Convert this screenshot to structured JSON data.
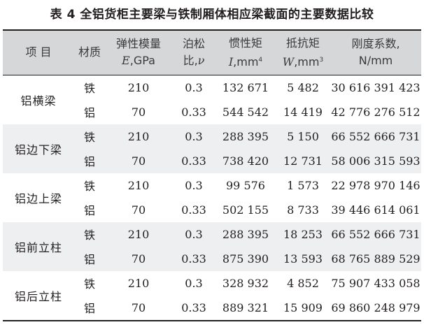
{
  "title": "表 4  全铝货柜主要梁与铁制厢体相应梁截面的主要数据比较",
  "headers": {
    "item": "项 目",
    "material": "材质",
    "modulus_l1": "弹性模量",
    "modulus_sym": "E",
    "modulus_unit": ",GPa",
    "poisson_l1": "泊松",
    "poisson_l2": "比,",
    "poisson_sym": "ν",
    "inertia_l1": "惯性矩",
    "inertia_sym": "I",
    "inertia_unit": ",mm",
    "inertia_exp": "4",
    "section_l1": "抵抗矩",
    "section_sym": "W",
    "section_unit": ",mm",
    "section_exp": "3",
    "stiffness_l1": "刚度系数,",
    "stiffness_l2": "N/mm"
  },
  "groups": [
    {
      "name": "铝横梁",
      "rows": [
        {
          "material": "铁",
          "modulus": "210",
          "poisson": "0.3",
          "inertia": "132 671",
          "section": "5 482",
          "stiffness": "30 616 391 423"
        },
        {
          "material": "铝",
          "modulus": "70",
          "poisson": "0.33",
          "inertia": "544 542",
          "section": "14 419",
          "stiffness": "42 776 276 512"
        }
      ]
    },
    {
      "name": "铝边下梁",
      "rows": [
        {
          "material": "铁",
          "modulus": "210",
          "poisson": "0.3",
          "inertia": "288 395",
          "section": "5 150",
          "stiffness": "66 552 666 731"
        },
        {
          "material": "铝",
          "modulus": "70",
          "poisson": "0.33",
          "inertia": "738 420",
          "section": "12 731",
          "stiffness": "58 006 315 593"
        }
      ]
    },
    {
      "name": "铝边上梁",
      "rows": [
        {
          "material": "铁",
          "modulus": "210",
          "poisson": "0.3",
          "inertia": "99 576",
          "section": "1 573",
          "stiffness": "22 978 970 146"
        },
        {
          "material": "铝",
          "modulus": "70",
          "poisson": "0.33",
          "inertia": "502 155",
          "section": "8 733",
          "stiffness": "39 446 614 061"
        }
      ]
    },
    {
      "name": "铝前立柱",
      "rows": [
        {
          "material": "铁",
          "modulus": "210",
          "poisson": "0.3",
          "inertia": "288 395",
          "section": "18 253",
          "stiffness": "66 552 666 731"
        },
        {
          "material": "铝",
          "modulus": "70",
          "poisson": "0.33",
          "inertia": "875 390",
          "section": "13 593",
          "stiffness": "68 765 889 529"
        }
      ]
    },
    {
      "name": "铝后立柱",
      "rows": [
        {
          "material": "铁",
          "modulus": "210",
          "poisson": "0.3",
          "inertia": "328 932",
          "section": "4 852",
          "stiffness": "75 907 433 058"
        },
        {
          "material": "铝",
          "modulus": "70",
          "poisson": "0.33",
          "inertia": "889 321",
          "section": "15 909",
          "stiffness": "69 860 248 979"
        }
      ]
    }
  ]
}
